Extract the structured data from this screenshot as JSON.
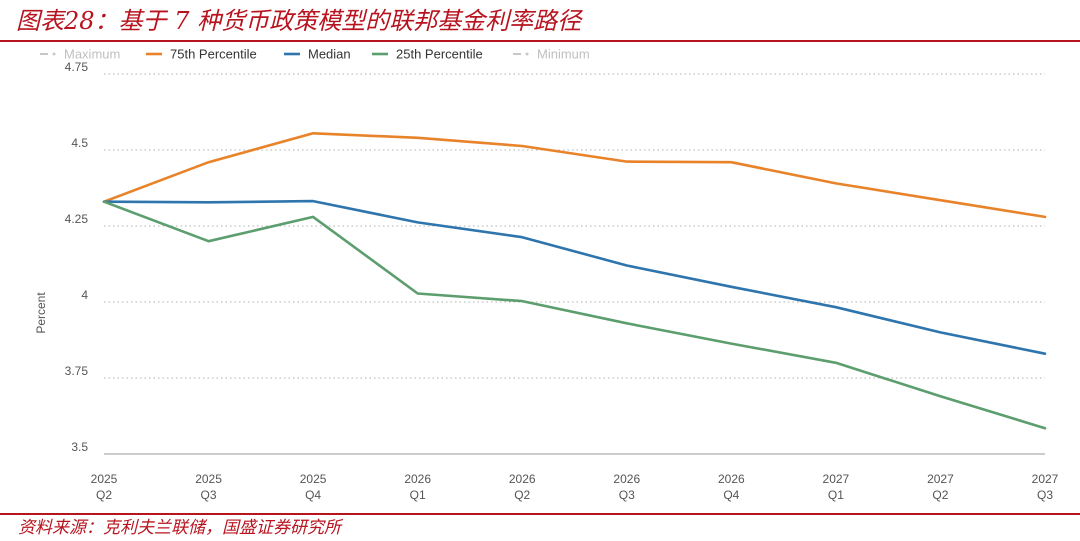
{
  "header": {
    "title": "图表28：基于 7 种货币政策模型的联邦基金利率路径"
  },
  "footer": {
    "source": "资料来源：克利夫兰联储，国盛证券研究所"
  },
  "colors": {
    "accent": "#b8141f",
    "p75": "#e8832a",
    "median": "#2e75ad",
    "p25": "#5c9e6e",
    "disabled": "#c8c8c8"
  },
  "chart_data": {
    "type": "line",
    "ylabel": "Percent",
    "ylim": [
      3.5,
      4.75
    ],
    "yticks": [
      {
        "value": 3.5,
        "label": "3.5"
      },
      {
        "value": 3.75,
        "label": "3.75"
      },
      {
        "value": 4,
        "label": "4"
      },
      {
        "value": 4.25,
        "label": "4.25"
      },
      {
        "value": 4.5,
        "label": "4.5"
      },
      {
        "value": 4.75,
        "label": "4.75"
      }
    ],
    "categories": [
      "2025 Q2",
      "2025 Q3",
      "2025 Q4",
      "2026 Q1",
      "2026 Q2",
      "2026 Q3",
      "2026 Q4",
      "2027 Q1",
      "2027 Q2",
      "2027 Q3"
    ],
    "category_lines": [
      [
        "2025",
        "Q2"
      ],
      [
        "2025",
        "Q3"
      ],
      [
        "2025",
        "Q4"
      ],
      [
        "2026",
        "Q1"
      ],
      [
        "2026",
        "Q2"
      ],
      [
        "2026",
        "Q3"
      ],
      [
        "2026",
        "Q4"
      ],
      [
        "2027",
        "Q1"
      ],
      [
        "2027",
        "Q2"
      ],
      [
        "2027",
        "Q3"
      ]
    ],
    "grid": true,
    "legend_position": "top",
    "legend": [
      {
        "name": "Maximum",
        "color": "#c8c8c8",
        "hidden": true
      },
      {
        "name": "75th Percentile",
        "color": "#e8832a",
        "hidden": false
      },
      {
        "name": "Median",
        "color": "#2e75ad",
        "hidden": false
      },
      {
        "name": "25th Percentile",
        "color": "#5c9e6e",
        "hidden": false
      },
      {
        "name": "Minimum",
        "color": "#c8c8c8",
        "hidden": true
      }
    ],
    "series": [
      {
        "name": "75th Percentile",
        "color": "#e8832a",
        "values": [
          4.33,
          4.46,
          4.555,
          4.54,
          4.513,
          4.462,
          4.46,
          4.39,
          4.335,
          4.28
        ]
      },
      {
        "name": "Median",
        "color": "#2e75ad",
        "values": [
          4.33,
          4.328,
          4.332,
          4.262,
          4.213,
          4.12,
          4.05,
          3.983,
          3.9,
          3.83
        ]
      },
      {
        "name": "25th Percentile",
        "color": "#5c9e6e",
        "values": [
          4.33,
          4.2,
          4.28,
          4.028,
          4.003,
          3.93,
          3.863,
          3.8,
          3.69,
          3.585
        ]
      }
    ]
  }
}
